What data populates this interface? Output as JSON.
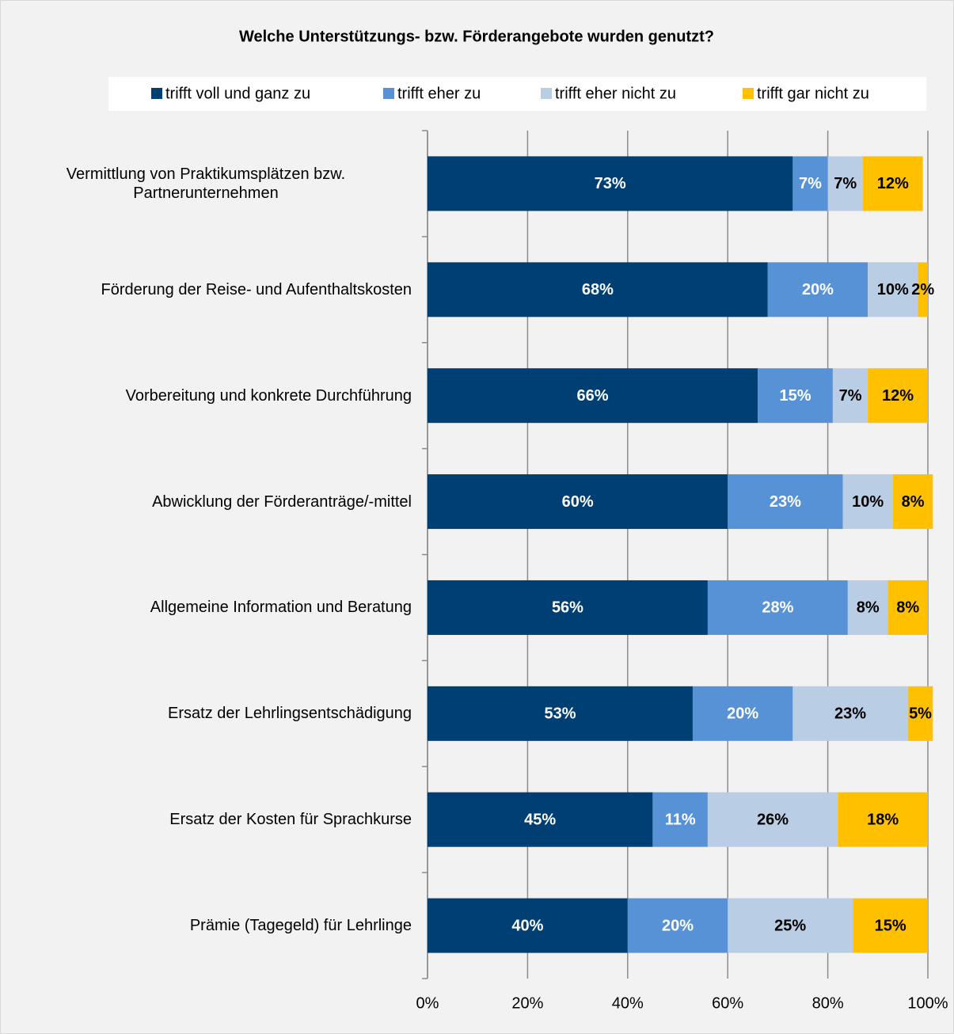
{
  "chart_data": {
    "type": "stacked-barh",
    "title": "Welche Unterstützungs- bzw. Förderangebote wurden genutzt?",
    "categories": [
      "Vermittlung von Praktikumsplätzen bzw.\nPartnerunternehmen",
      "Förderung der Reise- und Aufenthaltskosten",
      "Vorbereitung und konkrete Durchführung",
      "Abwicklung der Förderanträge/-mittel",
      "Allgemeine Information und Beratung",
      "Ersatz der Lehrlingsentschädigung",
      "Ersatz der Kosten für Sprachkurse",
      "Prämie (Tagegeld) für Lehrlinge"
    ],
    "series": [
      {
        "name": "trifft voll und ganz zu",
        "color": "#003f74",
        "label_color": "#ffffff",
        "values": [
          73,
          68,
          66,
          60,
          56,
          53,
          45,
          40
        ],
        "value_labels": [
          "73%",
          "68%",
          "66%",
          "60%",
          "56%",
          "53%",
          "45%",
          "40%"
        ]
      },
      {
        "name": "trifft eher zu",
        "color": "#5892d6",
        "label_color": "#ffffff",
        "values": [
          7,
          20,
          15,
          23,
          28,
          20,
          11,
          20
        ],
        "value_labels": [
          "7%",
          "20%",
          "15%",
          "23%",
          "28%",
          "20%",
          "11%",
          "20%"
        ]
      },
      {
        "name": "trifft eher nicht zu",
        "color": "#b9cde5",
        "label_color": "#000000",
        "values": [
          7,
          10,
          7,
          10,
          8,
          23,
          26,
          25
        ],
        "value_labels": [
          "7%",
          "10%",
          "7%",
          "10%",
          "8%",
          "23%",
          "26%",
          "25%"
        ]
      },
      {
        "name": "trifft gar nicht zu",
        "color": "#ffc000",
        "label_color": "#000000",
        "values": [
          12,
          2,
          12,
          8,
          8,
          5,
          18,
          15
        ],
        "value_labels": [
          "12%",
          "2%",
          "12%",
          "8%",
          "8%",
          "5%",
          "18%",
          "15%"
        ]
      }
    ],
    "xlim": [
      0,
      100
    ],
    "xticks": [
      {
        "value": 0,
        "label": "0%"
      },
      {
        "value": 20,
        "label": "20%"
      },
      {
        "value": 40,
        "label": "40%"
      },
      {
        "value": 60,
        "label": "60%"
      },
      {
        "value": 80,
        "label": "80%"
      },
      {
        "value": 100,
        "label": "100%"
      }
    ],
    "grid": true,
    "legend": "top"
  }
}
